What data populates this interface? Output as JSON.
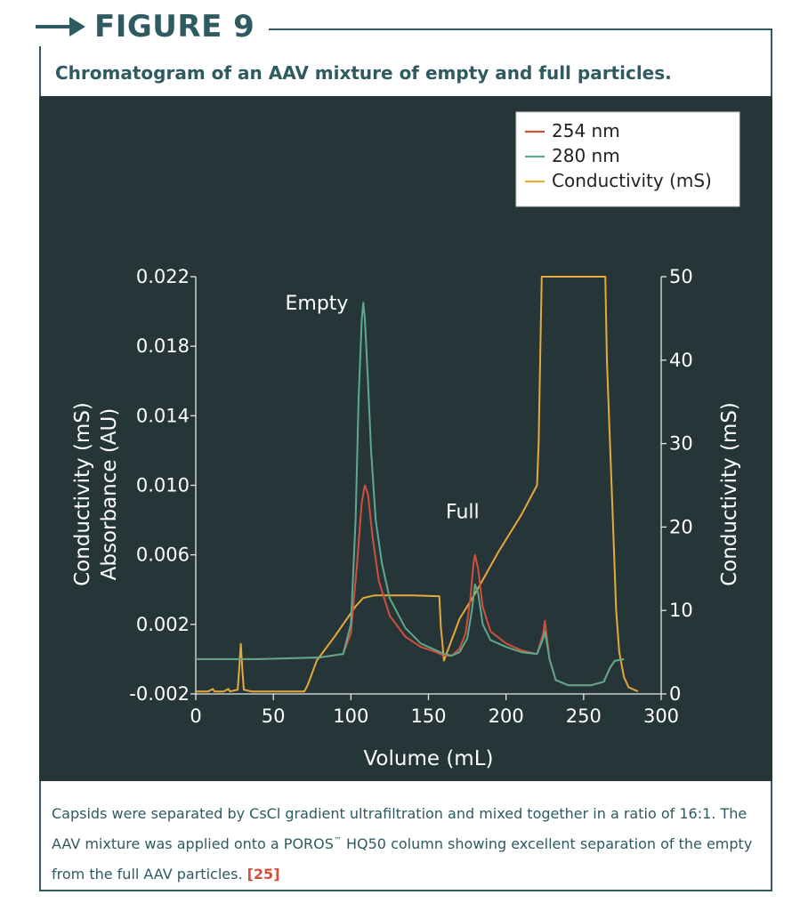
{
  "figure": {
    "label": "FIGURE 9",
    "subtitle": "Chromatogram of an AAV mixture of empty and full particles."
  },
  "caption": {
    "text": "Capsids were separated by CsCl gradient ultrafiltration and mixed together in a ratio of 16:1. The AAV mixture was applied onto a POROS",
    "trademark": "™",
    "text_after": " HQ50 column showing excellent separation of the empty from the full AAV particles. ",
    "reference": "[25]"
  },
  "colors": {
    "frame": "#2e5a61",
    "panel": "#263538",
    "s254": "#d1503a",
    "s280": "#5fa88e",
    "conductivity": "#e6a93a",
    "reference": "#d1503a"
  },
  "chart_data": {
    "type": "line",
    "xlabel": "Volume (mL)",
    "ylabel_left_lines": [
      "Conductivity (mS)",
      "Absorbance (AU)"
    ],
    "ylabel_right": "Conductivity (mS)",
    "xlim": [
      0,
      300
    ],
    "ylim_left": [
      -0.002,
      0.022
    ],
    "ylim_right": [
      0,
      50
    ],
    "x_ticks": [
      "0",
      "50",
      "100",
      "150",
      "200",
      "250",
      "300"
    ],
    "y_left_ticks": [
      "-0.002",
      "0.002",
      "0.006",
      "0.010",
      "0.014",
      "0.018",
      "0.022"
    ],
    "y_right_ticks": [
      "0",
      "10",
      "20",
      "30",
      "40",
      "50"
    ],
    "grid": false,
    "legend_position": "top-right",
    "annotations": [
      {
        "text": "Empty",
        "x": 78,
        "y": 0.0201
      },
      {
        "text": "Full",
        "x": 172,
        "y": 0.0081
      }
    ],
    "series": [
      {
        "name": "254 nm",
        "axis": "left",
        "points": [
          [
            0,
            0
          ],
          [
            40,
            0
          ],
          [
            80,
            0.0001
          ],
          [
            95,
            0.0003
          ],
          [
            100,
            0.0015
          ],
          [
            104,
            0.0055
          ],
          [
            107,
            0.009
          ],
          [
            109,
            0.01
          ],
          [
            111,
            0.0095
          ],
          [
            114,
            0.007
          ],
          [
            118,
            0.0045
          ],
          [
            125,
            0.0025
          ],
          [
            135,
            0.0013
          ],
          [
            145,
            0.0007
          ],
          [
            155,
            0.0004
          ],
          [
            160,
            0.0002
          ],
          [
            165,
            0.0002
          ],
          [
            170,
            0.0006
          ],
          [
            174,
            0.0015
          ],
          [
            177,
            0.0035
          ],
          [
            179,
            0.0055
          ],
          [
            180,
            0.006
          ],
          [
            182,
            0.0052
          ],
          [
            185,
            0.003
          ],
          [
            190,
            0.0016
          ],
          [
            200,
            0.0009
          ],
          [
            210,
            0.0005
          ],
          [
            220,
            0.0003
          ],
          [
            224,
            0.0015
          ],
          [
            225,
            0.0022
          ],
          [
            226,
            0.0015
          ],
          [
            228,
            0
          ],
          [
            232,
            -0.0012
          ],
          [
            240,
            -0.0015
          ],
          [
            255,
            -0.0015
          ],
          [
            263,
            -0.0013
          ],
          [
            267,
            -0.0005
          ],
          [
            270,
            -0.0001
          ],
          [
            276,
            0
          ]
        ]
      },
      {
        "name": "280 nm",
        "axis": "left",
        "points": [
          [
            0,
            0
          ],
          [
            40,
            0
          ],
          [
            80,
            0.0001
          ],
          [
            95,
            0.0003
          ],
          [
            100,
            0.002
          ],
          [
            103,
            0.008
          ],
          [
            105,
            0.015
          ],
          [
            107,
            0.0195
          ],
          [
            108,
            0.0205
          ],
          [
            109,
            0.0196
          ],
          [
            111,
            0.016
          ],
          [
            113,
            0.012
          ],
          [
            116,
            0.008
          ],
          [
            120,
            0.0055
          ],
          [
            125,
            0.0035
          ],
          [
            135,
            0.0018
          ],
          [
            145,
            0.0009
          ],
          [
            155,
            0.0005
          ],
          [
            160,
            0.0003
          ],
          [
            165,
            0.0002
          ],
          [
            170,
            0.0004
          ],
          [
            175,
            0.0012
          ],
          [
            178,
            0.0028
          ],
          [
            180,
            0.0043
          ],
          [
            182,
            0.0038
          ],
          [
            185,
            0.002
          ],
          [
            190,
            0.0011
          ],
          [
            200,
            0.0007
          ],
          [
            210,
            0.0004
          ],
          [
            220,
            0.0003
          ],
          [
            224,
            0.0012
          ],
          [
            225,
            0.0016
          ],
          [
            226,
            0.0011
          ],
          [
            228,
            0
          ],
          [
            232,
            -0.0012
          ],
          [
            240,
            -0.0015
          ],
          [
            255,
            -0.0015
          ],
          [
            263,
            -0.0013
          ],
          [
            267,
            -0.0005
          ],
          [
            270,
            -0.0001
          ],
          [
            276,
            0
          ]
        ]
      },
      {
        "name": "Conductivity (mS)",
        "axis": "right",
        "points": [
          [
            0,
            0.3
          ],
          [
            8,
            0.3
          ],
          [
            11,
            0.6
          ],
          [
            12,
            0.3
          ],
          [
            18,
            0.3
          ],
          [
            21,
            0.6
          ],
          [
            22,
            0.3
          ],
          [
            27,
            0.5
          ],
          [
            28,
            3
          ],
          [
            29,
            6
          ],
          [
            30,
            3
          ],
          [
            31,
            0.5
          ],
          [
            36,
            0.3
          ],
          [
            70,
            0.3
          ],
          [
            72,
            1
          ],
          [
            78,
            4
          ],
          [
            90,
            7
          ],
          [
            103,
            10.5
          ],
          [
            108,
            11.5
          ],
          [
            115,
            11.8
          ],
          [
            140,
            11.8
          ],
          [
            157,
            11.7
          ],
          [
            158,
            8
          ],
          [
            159,
            6
          ],
          [
            160,
            4
          ],
          [
            162,
            5
          ],
          [
            170,
            9
          ],
          [
            180,
            12
          ],
          [
            195,
            17
          ],
          [
            210,
            21.5
          ],
          [
            220,
            25
          ],
          [
            221,
            30
          ],
          [
            222,
            40
          ],
          [
            223,
            50
          ],
          [
            264,
            50
          ],
          [
            265,
            40
          ],
          [
            267,
            30
          ],
          [
            269,
            20
          ],
          [
            271,
            10
          ],
          [
            273,
            5
          ],
          [
            276,
            2
          ],
          [
            279,
            0.8
          ],
          [
            285,
            0.3
          ]
        ]
      }
    ]
  }
}
